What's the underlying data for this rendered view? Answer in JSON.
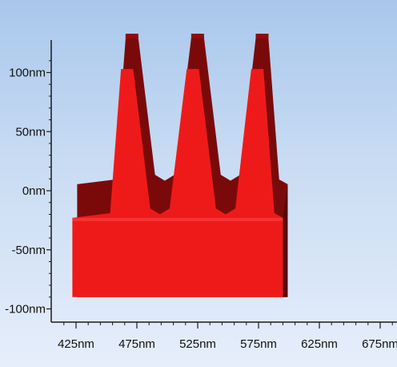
{
  "viewer": {
    "background_top": "#a9c7ec",
    "background_bottom": "#e6eefb",
    "axis_color": "#1a1a1a"
  },
  "chart_data": {
    "type": "area",
    "title": "",
    "xlabel": "",
    "ylabel": "",
    "x_unit": "nm",
    "y_unit": "nm",
    "x_ticks": [
      "425nm",
      "475nm",
      "525nm",
      "575nm",
      "625nm",
      "675nm"
    ],
    "y_ticks": [
      "100nm",
      "50nm",
      "0nm",
      "-50nm",
      "-100nm"
    ],
    "xlim": [
      410,
      690
    ],
    "ylim": [
      -110,
      120
    ],
    "grid": false,
    "legend": "none",
    "series": [
      {
        "color": "#ee1a1a",
        "shadow_color": "#7a0a0a",
        "profile": {
          "x_start": 422,
          "x_end": 595,
          "base_y": -90,
          "floor_y": -23,
          "peaks": [
            {
              "x": 467,
              "y": 103
            },
            {
              "x": 521,
              "y": 103
            },
            {
              "x": 574,
              "y": 103
            }
          ],
          "valleys": [
            {
              "x": 494,
              "y": -20
            },
            {
              "x": 548,
              "y": -20
            }
          ]
        }
      }
    ]
  }
}
